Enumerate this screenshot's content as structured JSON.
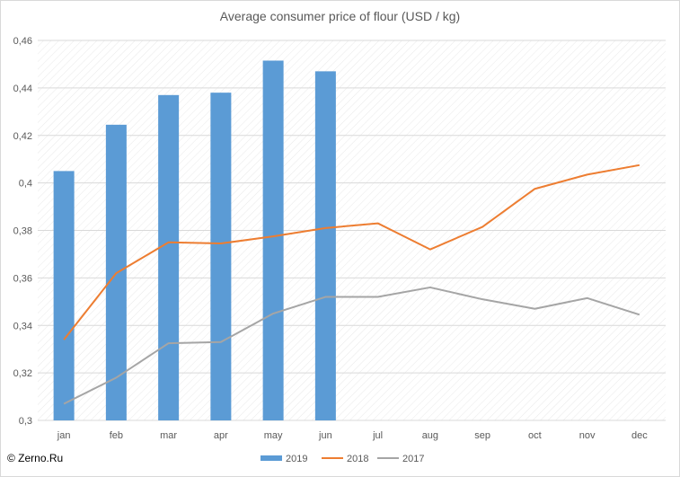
{
  "chart_data": {
    "type": "bar+line",
    "title": "Average consumer price of flour (USD / kg)",
    "categories": [
      "jan",
      "feb",
      "mar",
      "apr",
      "may",
      "jun",
      "jul",
      "aug",
      "sep",
      "oct",
      "nov",
      "dec"
    ],
    "y_ticks": [
      "0,3",
      "0,32",
      "0,34",
      "0,36",
      "0,38",
      "0,4",
      "0,42",
      "0,44",
      "0,46"
    ],
    "ylim": [
      0.3,
      0.46
    ],
    "grid": true,
    "legend_position": "bottom",
    "series": [
      {
        "name": "2019",
        "kind": "bar",
        "color": "#5b9bd5",
        "values": [
          0.405,
          0.4245,
          0.437,
          0.438,
          0.4515,
          0.447,
          null,
          null,
          null,
          null,
          null,
          null
        ]
      },
      {
        "name": "2018",
        "kind": "line",
        "color": "#ed7d31",
        "values": [
          0.334,
          0.362,
          0.375,
          0.3745,
          0.3775,
          0.381,
          0.383,
          0.372,
          0.3815,
          0.3975,
          0.4035,
          0.4075
        ]
      },
      {
        "name": "2017",
        "kind": "line",
        "color": "#a5a5a5",
        "values": [
          0.307,
          0.318,
          0.3325,
          0.333,
          0.345,
          0.352,
          0.352,
          0.356,
          0.351,
          0.347,
          0.3515,
          0.3445
        ]
      }
    ]
  },
  "footer": {
    "copyright": "© Zerno.Ru"
  }
}
